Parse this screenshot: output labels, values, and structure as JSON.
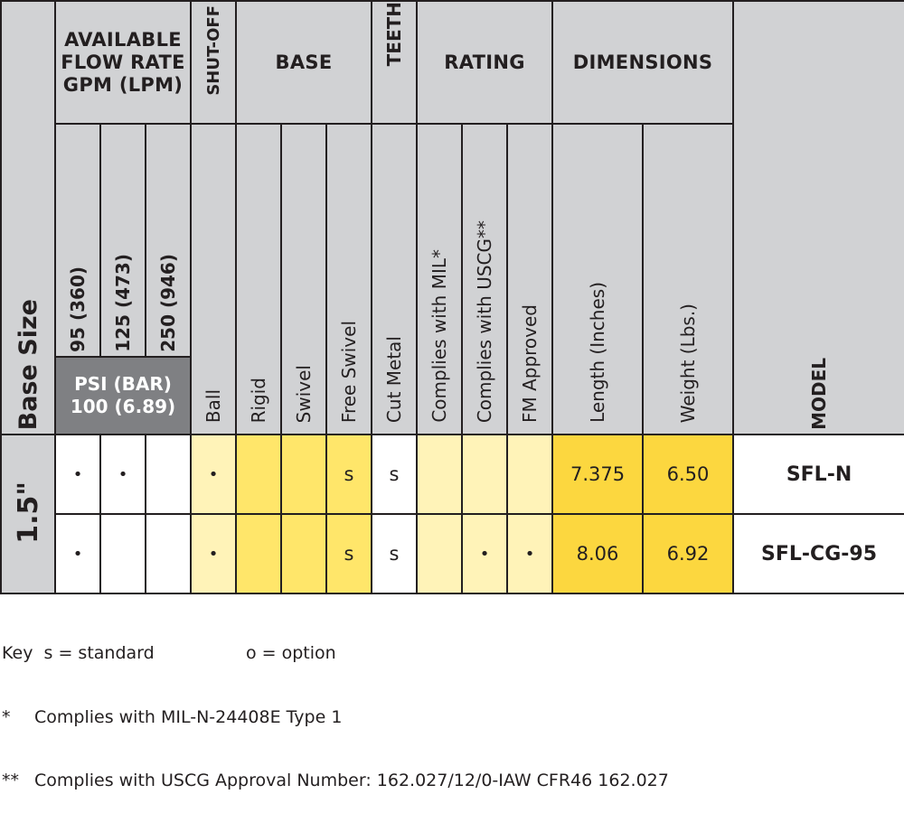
{
  "headers": {
    "base_size": "Base Size",
    "available_flow_rate": [
      "AVAILABLE",
      "FLOW RATE",
      "GPM (LPM)"
    ],
    "shut_off": "SHUT-OFF",
    "base": "BASE",
    "teeth": "TEETH",
    "rating": "RATING",
    "dimensions": "DIMENSIONS",
    "model": "MODEL",
    "flow_rates": [
      "95 (360)",
      "125 (473)",
      "250 (946)"
    ],
    "psi": [
      "PSI (BAR)",
      "100 (6.89)"
    ],
    "shut_off_sub": "Ball",
    "base_sub": [
      "Rigid",
      "Swivel",
      "Free Swivel"
    ],
    "teeth_sub": "Cut Metal",
    "rating_sub": [
      "Complies with MIL*",
      "Complies with USCG**",
      "FM Approved"
    ],
    "dimensions_sub": [
      "Length (Inches)",
      "Weight (Lbs.)"
    ]
  },
  "size": "1.5\"",
  "rows": [
    {
      "flow": [
        "•",
        "•",
        ""
      ],
      "ball": "•",
      "base": [
        "",
        "",
        "s"
      ],
      "cut_metal": "s",
      "rating": [
        "",
        "",
        ""
      ],
      "length": "7.375",
      "weight": "6.50",
      "model": "SFL-N"
    },
    {
      "flow": [
        "•",
        "",
        ""
      ],
      "ball": "•",
      "base": [
        "",
        "",
        "s"
      ],
      "cut_metal": "s",
      "rating": [
        "",
        "•",
        "•"
      ],
      "length": "8.06",
      "weight": "6.92",
      "model": "SFL-CG-95"
    }
  ],
  "notes": {
    "key_label": "Key  s = standard",
    "key_option": "o = option",
    "footnote1_mark": "*",
    "footnote1": "Complies with MIL-N-24408E Type 1",
    "footnote2_mark": "**",
    "footnote2": "Complies with USCG Approval Number: 162.027/12/0-IAW CFR46 162.027"
  },
  "colors": {
    "header_gray": "#d1d2d4",
    "psi_gray": "#7f8083",
    "pale_yellow": "#fff3b8",
    "mid_yellow": "#ffe66a",
    "deep_yellow": "#fcd73f"
  }
}
